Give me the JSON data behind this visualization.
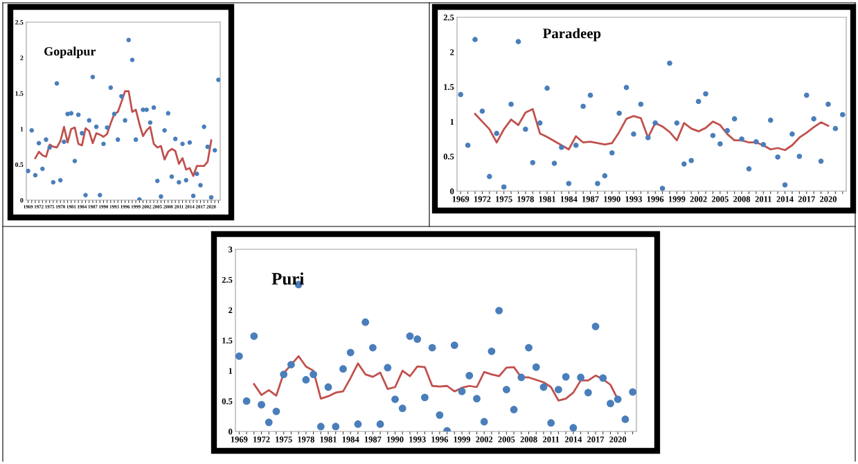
{
  "chart_data": [
    {
      "type": "scatter",
      "title": "Gopalpur",
      "categories": [
        "1969",
        null,
        null,
        "1972",
        null,
        null,
        "1975",
        null,
        null,
        "1978",
        null,
        null,
        "1981",
        null,
        null,
        "1984",
        null,
        null,
        "1987",
        null,
        null,
        "1990",
        null,
        null,
        "1993",
        null,
        null,
        "1996",
        null,
        null,
        "1999",
        null,
        null,
        "2002",
        null,
        null,
        "2005",
        null,
        null,
        "2008",
        null,
        null,
        "2011",
        null,
        null,
        "2014",
        null,
        null,
        "2017",
        null,
        null,
        "2020",
        null,
        null
      ],
      "series": [
        {
          "color": "#4a7ebb",
          "marker": "circle",
          "values": [
            0.41,
            0.98,
            0.35,
            0.8,
            0.44,
            0.85,
            0.74,
            0.25,
            1.64,
            0.28,
            0.82,
            1.21,
            1.22,
            0.55,
            1.2,
            0.94,
            0.07,
            1.12,
            1.73,
            1.03,
            0.07,
            0.79,
            1.02,
            1.58,
            1.21,
            0.85,
            1.46,
            1.12,
            2.25,
            1.97,
            0.85,
            0.01,
            1.27,
            1.27,
            1.09,
            1.3,
            0.27,
            0.05,
            0.98,
            1.22,
            0.33,
            0.86,
            0.25,
            0.79,
            0.28,
            0.81,
            0.06,
            0.37,
            0.21,
            1.03,
            0.75,
            0.04,
            0.7,
            1.69
          ]
        },
        {
          "type": "line",
          "color": "#c0504d",
          "marker": "none",
          "values": [
            null,
            null,
            0.59,
            0.68,
            0.63,
            0.61,
            0.78,
            0.75,
            0.74,
            0.83,
            1.03,
            0.81,
            1.0,
            1.02,
            0.79,
            0.77,
            1.01,
            0.97,
            0.8,
            0.94,
            0.92,
            0.89,
            0.93,
            1.08,
            1.21,
            1.24,
            1.38,
            1.53,
            1.53,
            1.24,
            1.27,
            1.07,
            0.9,
            0.98,
            1.03,
            0.79,
            0.74,
            0.76,
            0.57,
            0.68,
            0.72,
            0.69,
            0.51,
            0.59,
            0.43,
            0.45,
            0.34,
            0.48,
            0.48,
            0.48,
            0.54,
            0.84,
            null,
            null
          ]
        }
      ],
      "ylim": [
        0,
        2.5
      ],
      "yticks": [
        0,
        0.5,
        1,
        1.5,
        2,
        2.5
      ],
      "grid": false
    },
    {
      "type": "scatter",
      "title": "Paradeep",
      "categories": [
        "1969",
        null,
        null,
        "1972",
        null,
        null,
        "1975",
        null,
        null,
        "1978",
        null,
        null,
        "1981",
        null,
        null,
        "1984",
        null,
        null,
        "1987",
        null,
        null,
        "1990",
        null,
        null,
        "1993",
        null,
        null,
        "1996",
        null,
        null,
        "1999",
        null,
        null,
        "2002",
        null,
        null,
        "2005",
        null,
        null,
        "2008",
        null,
        null,
        "2011",
        null,
        null,
        "2014",
        null,
        null,
        "2017",
        null,
        null,
        "2020",
        null,
        null
      ],
      "series": [
        {
          "color": "#4a7ebb",
          "marker": "circle",
          "values": [
            1.39,
            0.66,
            2.18,
            1.15,
            0.21,
            0.83,
            0.06,
            1.25,
            2.15,
            0.89,
            0.41,
            0.98,
            1.48,
            0.4,
            0.63,
            0.11,
            0.66,
            1.22,
            1.38,
            0.11,
            0.22,
            0.55,
            1.12,
            1.49,
            0.82,
            1.25,
            0.77,
            0.98,
            0.04,
            1.84,
            0.98,
            0.39,
            0.44,
            1.29,
            1.4,
            0.8,
            0.68,
            0.87,
            1.04,
            0.75,
            0.32,
            0.71,
            0.67,
            1.02,
            0.49,
            0.09,
            0.82,
            0.5,
            1.38,
            1.04,
            0.43,
            1.25,
            0.9,
            1.1
          ]
        },
        {
          "type": "line",
          "color": "#c0504d",
          "marker": "none",
          "values": [
            null,
            null,
            1.11,
            1.0,
            0.89,
            0.7,
            0.89,
            1.03,
            0.95,
            1.13,
            1.18,
            0.83,
            0.78,
            0.72,
            0.66,
            0.6,
            0.79,
            0.7,
            0.71,
            0.69,
            0.67,
            0.69,
            0.85,
            1.04,
            1.08,
            1.05,
            0.77,
            0.98,
            0.93,
            0.85,
            0.73,
            0.98,
            0.9,
            0.86,
            0.91,
            1.0,
            0.95,
            0.82,
            0.73,
            0.73,
            0.7,
            0.7,
            0.66,
            0.6,
            0.62,
            0.59,
            0.66,
            0.77,
            0.84,
            0.92,
            0.99,
            0.94,
            null,
            null
          ]
        }
      ],
      "ylim": [
        0,
        2.5
      ],
      "yticks": [
        0,
        0.5,
        1,
        1.5,
        2,
        2.5
      ],
      "grid": false
    },
    {
      "type": "scatter",
      "title": "Puri",
      "categories": [
        "1969",
        null,
        null,
        "1972",
        null,
        null,
        "1975",
        null,
        null,
        "1978",
        null,
        null,
        "1981",
        null,
        null,
        "1984",
        null,
        null,
        "1987",
        null,
        null,
        "1990",
        null,
        null,
        "1993",
        null,
        null,
        "1996",
        null,
        null,
        "1999",
        null,
        null,
        "2002",
        null,
        null,
        "2005",
        null,
        null,
        "2008",
        null,
        null,
        "2011",
        null,
        null,
        "2014",
        null,
        null,
        "2017",
        null,
        null,
        "2020",
        null,
        null
      ],
      "series": [
        {
          "color": "#4a7ebb",
          "marker": "circle",
          "values": [
            1.24,
            0.5,
            1.57,
            0.44,
            0.15,
            0.33,
            0.94,
            1.1,
            2.42,
            0.85,
            0.94,
            0.08,
            0.73,
            0.08,
            1.03,
            1.3,
            0.12,
            1.8,
            1.38,
            0.12,
            1.05,
            0.53,
            0.38,
            1.57,
            1.52,
            0.56,
            1.38,
            0.27,
            0.01,
            1.42,
            0.66,
            0.92,
            0.54,
            0.16,
            1.32,
            1.99,
            0.69,
            0.36,
            0.89,
            1.38,
            1.06,
            0.73,
            0.14,
            0.69,
            0.9,
            0.06,
            0.89,
            0.64,
            1.73,
            0.88,
            0.46,
            0.53,
            0.2,
            0.65
          ]
        },
        {
          "type": "line",
          "color": "#c0504d",
          "marker": "none",
          "values": [
            null,
            null,
            0.78,
            0.6,
            0.68,
            0.59,
            0.96,
            1.1,
            1.24,
            1.07,
            1.0,
            0.54,
            0.58,
            0.64,
            0.66,
            0.88,
            1.12,
            0.94,
            0.9,
            0.97,
            0.7,
            0.73,
            1.0,
            0.91,
            1.07,
            1.06,
            0.75,
            0.74,
            0.75,
            0.66,
            0.72,
            0.75,
            0.73,
            0.98,
            0.94,
            0.91,
            1.05,
            1.06,
            0.89,
            0.89,
            0.85,
            0.81,
            0.73,
            0.51,
            0.54,
            0.64,
            0.84,
            0.84,
            0.92,
            0.86,
            0.77,
            0.53,
            null,
            null
          ]
        }
      ],
      "ylim": [
        0,
        3
      ],
      "yticks": [
        0,
        0.5,
        1,
        1.5,
        2,
        2.5,
        3
      ],
      "grid": false
    }
  ]
}
